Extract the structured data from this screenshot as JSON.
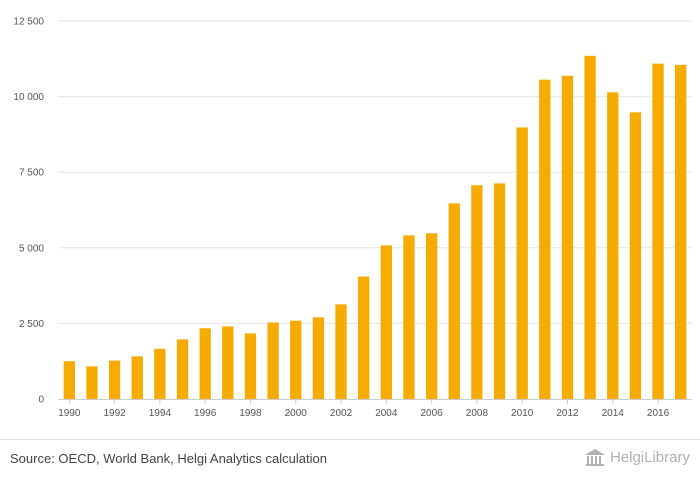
{
  "chart_data": {
    "type": "bar",
    "categories": [
      "1990",
      "1991",
      "1992",
      "1993",
      "1994",
      "1995",
      "1996",
      "1997",
      "1998",
      "1999",
      "2000",
      "2001",
      "2002",
      "2003",
      "2004",
      "2005",
      "2006",
      "2007",
      "2008",
      "2009",
      "2010",
      "2011",
      "2012",
      "2013",
      "2014",
      "2015",
      "2016",
      "2017"
    ],
    "x_tick_labels": [
      "1990",
      "1992",
      "1994",
      "1996",
      "1998",
      "2000",
      "2002",
      "2004",
      "2006",
      "2008",
      "2010",
      "2012",
      "2014",
      "2016"
    ],
    "series": [
      {
        "values": [
          1250,
          1080,
          1270,
          1410,
          1660,
          1970,
          2340,
          2400,
          2170,
          2530,
          2590,
          2700,
          3130,
          4050,
          5080,
          5410,
          5480,
          6470,
          7070,
          7130,
          8980,
          10560,
          10690,
          11350,
          10140,
          9480,
          11090,
          11050
        ],
        "color": "#f5ab00"
      }
    ],
    "y_ticks": [
      0,
      2500,
      5000,
      7500,
      10000,
      12500
    ],
    "y_tick_labels": [
      "0",
      "2 500",
      "5 000",
      "7 500",
      "10 000",
      "12 500"
    ],
    "ylim": [
      0,
      12500
    ],
    "grid": true,
    "gridline_color": "#e6e6e6"
  },
  "footer": {
    "source": "Source: OECD, World Bank, Helgi Analytics calculation",
    "brand": "HelgiLibrary"
  }
}
